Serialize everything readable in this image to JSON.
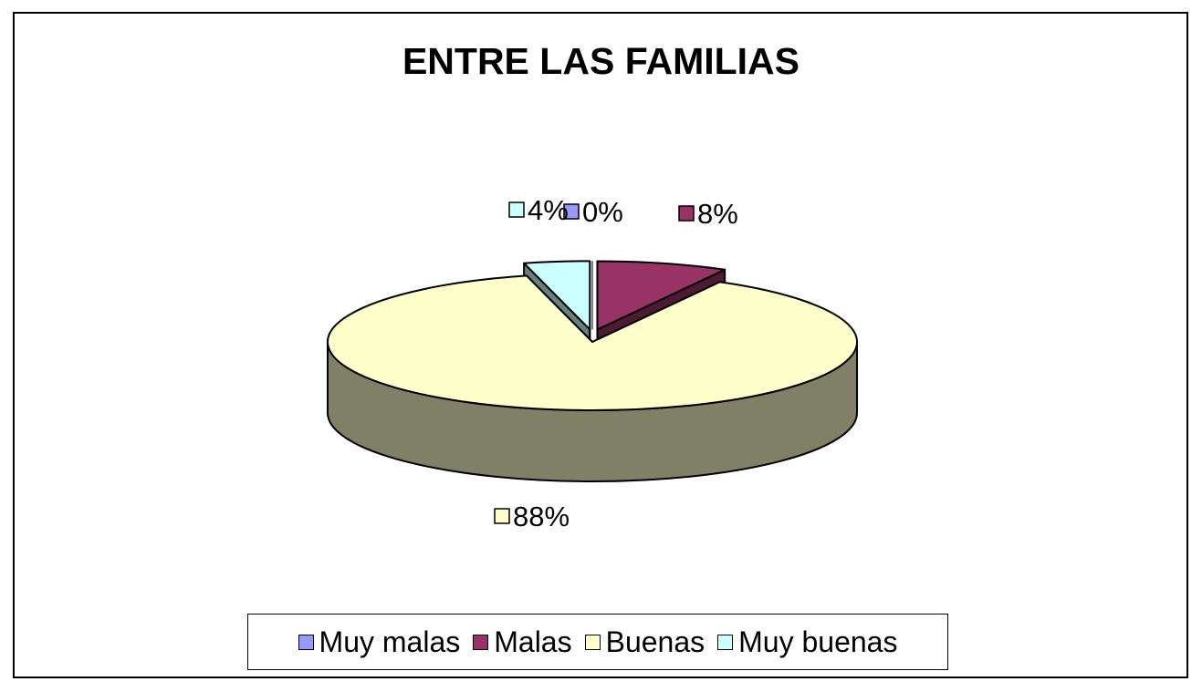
{
  "chart_data": {
    "type": "pie",
    "title": "ENTRE LAS FAMILIAS",
    "categories": [
      "Muy malas",
      "Malas",
      "Buenas",
      "Muy buenas"
    ],
    "values": [
      0,
      8,
      88,
      4
    ],
    "value_labels": [
      "0%",
      "8%",
      "88%",
      "4%"
    ],
    "colors": [
      "#9999FF",
      "#993366",
      "#FFFFCC",
      "#CCFFFF"
    ],
    "legend_position": "bottom",
    "style": "3d-exploded"
  }
}
